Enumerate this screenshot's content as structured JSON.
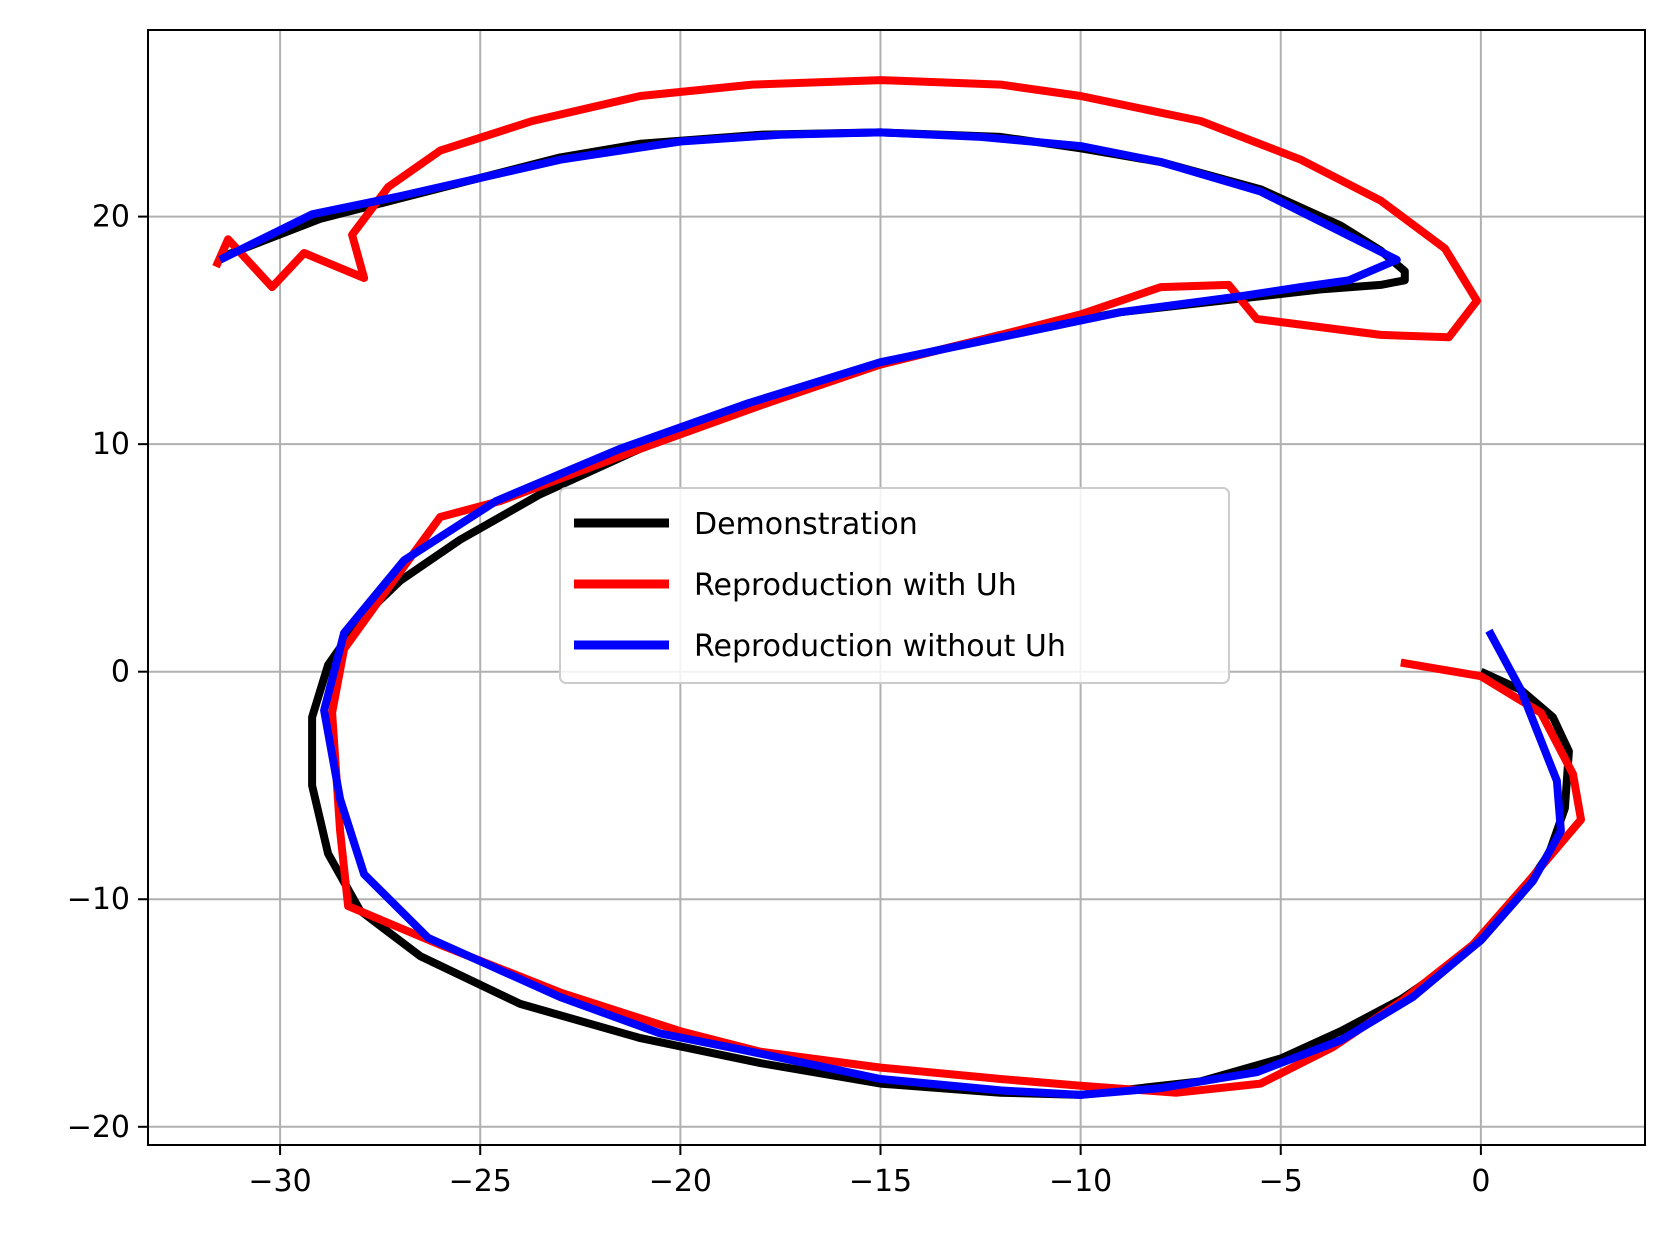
{
  "chart_data": {
    "type": "line",
    "title": "",
    "xlabel": "",
    "ylabel": "",
    "xlim": [
      -33.3,
      4.1
    ],
    "ylim": [
      -20.8,
      28.2
    ],
    "xticks": [
      -30,
      -25,
      -20,
      -15,
      -10,
      -5,
      0
    ],
    "yticks": [
      -20,
      -10,
      0,
      10,
      20
    ],
    "xtick_labels": [
      "−30",
      "−25",
      "−20",
      "−15",
      "−10",
      "−5",
      "0"
    ],
    "ytick_labels": [
      "−20",
      "−10",
      "0",
      "10",
      "20"
    ],
    "grid": true,
    "legend_position": "center",
    "series": [
      {
        "name": "Demonstration",
        "color": "#000000",
        "points": [
          [
            0,
            0
          ],
          [
            1.0,
            -0.8
          ],
          [
            1.8,
            -2.0
          ],
          [
            2.2,
            -3.5
          ],
          [
            2.1,
            -6.0
          ],
          [
            1.7,
            -8.0
          ],
          [
            1.0,
            -9.8
          ],
          [
            0,
            -11.8
          ],
          [
            -1,
            -13.2
          ],
          [
            -2,
            -14.4
          ],
          [
            -3.5,
            -15.8
          ],
          [
            -5,
            -17.0
          ],
          [
            -7,
            -18.0
          ],
          [
            -10,
            -18.6
          ],
          [
            -12,
            -18.5
          ],
          [
            -15,
            -18.1
          ],
          [
            -18,
            -17.2
          ],
          [
            -21,
            -16.1
          ],
          [
            -24,
            -14.6
          ],
          [
            -26.5,
            -12.5
          ],
          [
            -28,
            -10.5
          ],
          [
            -28.8,
            -8.0
          ],
          [
            -29.2,
            -5.0
          ],
          [
            -29.2,
            -2.0
          ],
          [
            -28.8,
            0.3
          ],
          [
            -28,
            2.3
          ],
          [
            -27,
            4.0
          ],
          [
            -25.5,
            5.8
          ],
          [
            -23.5,
            7.8
          ],
          [
            -21,
            9.8
          ],
          [
            -18,
            11.8
          ],
          [
            -15,
            13.5
          ],
          [
            -12,
            14.8
          ],
          [
            -9,
            15.8
          ],
          [
            -6,
            16.4
          ],
          [
            -4,
            16.8
          ],
          [
            -2.5,
            17.0
          ],
          [
            -1.9,
            17.2
          ],
          [
            -1.9,
            17.6
          ],
          [
            -2.5,
            18.5
          ],
          [
            -3.5,
            19.6
          ],
          [
            -5.5,
            21.2
          ],
          [
            -8,
            22.4
          ],
          [
            -10,
            23.0
          ],
          [
            -12,
            23.5
          ],
          [
            -15,
            23.7
          ],
          [
            -18,
            23.6
          ],
          [
            -21,
            23.2
          ],
          [
            -23,
            22.6
          ],
          [
            -25,
            21.7
          ],
          [
            -27,
            20.8
          ],
          [
            -29,
            19.9
          ],
          [
            -31.5,
            18.2
          ]
        ]
      },
      {
        "name": "Reproduction with Uh",
        "color": "#ff0000",
        "points": [
          [
            -2,
            0.4
          ],
          [
            0,
            -0.2
          ],
          [
            1.5,
            -1.8
          ],
          [
            2.3,
            -4.5
          ],
          [
            2.5,
            -6.5
          ],
          [
            1.2,
            -9.2
          ],
          [
            -0.2,
            -12.0
          ],
          [
            -2,
            -14.5
          ],
          [
            -3.7,
            -16.5
          ],
          [
            -5.5,
            -18.1
          ],
          [
            -7.6,
            -18.5
          ],
          [
            -10,
            -18.2
          ],
          [
            -12,
            -17.9
          ],
          [
            -15,
            -17.4
          ],
          [
            -18,
            -16.7
          ],
          [
            -20,
            -15.8
          ],
          [
            -23,
            -14.1
          ],
          [
            -26,
            -12.0
          ],
          [
            -28.3,
            -10.3
          ],
          [
            -28.5,
            -7.0
          ],
          [
            -28.7,
            -1.8
          ],
          [
            -28.4,
            1.0
          ],
          [
            -27.5,
            3.2
          ],
          [
            -26,
            6.8
          ],
          [
            -24.5,
            7.5
          ],
          [
            -21,
            9.8
          ],
          [
            -18,
            11.7
          ],
          [
            -15,
            13.5
          ],
          [
            -12,
            14.8
          ],
          [
            -10,
            15.7
          ],
          [
            -8,
            16.9
          ],
          [
            -6.3,
            17.0
          ],
          [
            -5.6,
            15.5
          ],
          [
            -2.5,
            14.8
          ],
          [
            -0.8,
            14.7
          ],
          [
            -0.1,
            16.3
          ],
          [
            -0.9,
            18.6
          ],
          [
            -2.5,
            20.7
          ],
          [
            -4.5,
            22.5
          ],
          [
            -7,
            24.2
          ],
          [
            -10,
            25.3
          ],
          [
            -12,
            25.8
          ],
          [
            -15,
            26.0
          ],
          [
            -18.2,
            25.8
          ],
          [
            -21,
            25.3
          ],
          [
            -23.7,
            24.2
          ],
          [
            -26,
            22.9
          ],
          [
            -27.3,
            21.3
          ],
          [
            -28.2,
            19.2
          ],
          [
            -27.9,
            17.3
          ],
          [
            -29.4,
            18.4
          ],
          [
            -30.2,
            16.9
          ],
          [
            -31.3,
            19.0
          ],
          [
            -31.6,
            17.8
          ]
        ]
      },
      {
        "name": "Reproduction without Uh",
        "color": "#0000ff",
        "points": [
          [
            0.2,
            1.8
          ],
          [
            1.0,
            -0.8
          ],
          [
            1.9,
            -4.8
          ],
          [
            2.0,
            -7.0
          ],
          [
            1.3,
            -9.2
          ],
          [
            0,
            -11.8
          ],
          [
            -1.7,
            -14.3
          ],
          [
            -3.5,
            -16.2
          ],
          [
            -5.6,
            -17.6
          ],
          [
            -8,
            -18.3
          ],
          [
            -10,
            -18.6
          ],
          [
            -12,
            -18.4
          ],
          [
            -15,
            -17.9
          ],
          [
            -18.5,
            -16.6
          ],
          [
            -20.5,
            -15.9
          ],
          [
            -23,
            -14.3
          ],
          [
            -26.3,
            -11.7
          ],
          [
            -27.9,
            -8.9
          ],
          [
            -28.5,
            -5.6
          ],
          [
            -28.9,
            -1.7
          ],
          [
            -28.4,
            1.7
          ],
          [
            -26.9,
            4.9
          ],
          [
            -24.6,
            7.5
          ],
          [
            -21.5,
            9.8
          ],
          [
            -18.3,
            11.8
          ],
          [
            -15,
            13.6
          ],
          [
            -12,
            14.7
          ],
          [
            -9,
            15.8
          ],
          [
            -6,
            16.5
          ],
          [
            -4.5,
            16.9
          ],
          [
            -3.3,
            17.2
          ],
          [
            -2.1,
            18.1
          ],
          [
            -3.8,
            19.6
          ],
          [
            -5.5,
            21.1
          ],
          [
            -8,
            22.4
          ],
          [
            -10,
            23.1
          ],
          [
            -12.5,
            23.5
          ],
          [
            -15,
            23.7
          ],
          [
            -17.5,
            23.6
          ],
          [
            -20,
            23.3
          ],
          [
            -23,
            22.5
          ],
          [
            -25.5,
            21.5
          ],
          [
            -27,
            20.9
          ],
          [
            -29.2,
            20.1
          ],
          [
            -31.5,
            18.1
          ]
        ]
      }
    ]
  }
}
